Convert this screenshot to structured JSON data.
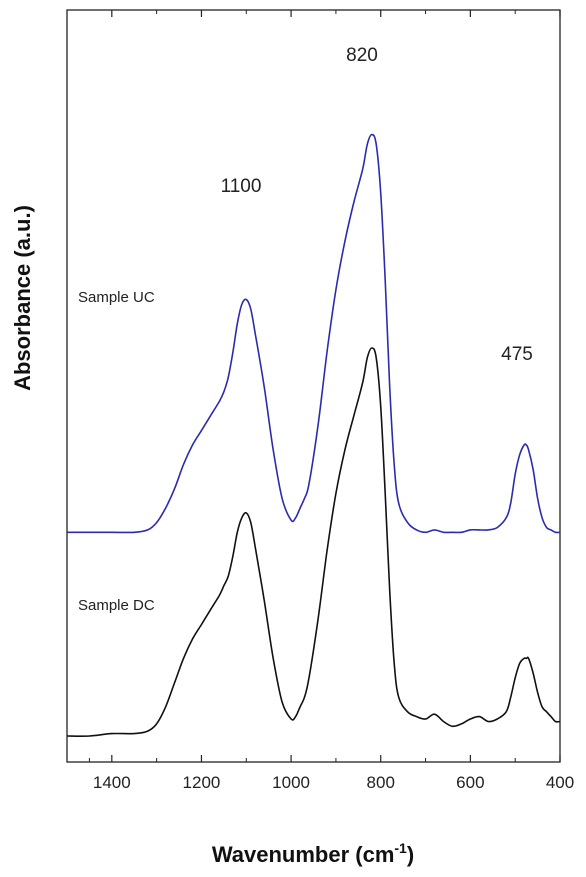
{
  "chart_data": {
    "type": "line",
    "xlabel": "Wavenumber (cm",
    "xlabel_sup": "-1",
    "xlabel_end": ")",
    "ylabel": "Absorbance (a.u.)",
    "xlim": [
      1500,
      400
    ],
    "x_reversed": true,
    "x_ticks": [
      1400,
      1200,
      1000,
      800,
      600,
      400
    ],
    "y_ticks_shown": false,
    "grid": false,
    "annotations": [
      {
        "text": "1100",
        "x": 1100
      },
      {
        "text": "820",
        "x": 820
      },
      {
        "text": "475",
        "x": 475
      }
    ],
    "series": [
      {
        "name": "Sample UC",
        "color": "#2b2bb0",
        "offset": 0.42,
        "x": [
          1500,
          1450,
          1400,
          1350,
          1320,
          1300,
          1280,
          1260,
          1240,
          1220,
          1200,
          1180,
          1160,
          1150,
          1140,
          1130,
          1120,
          1110,
          1100,
          1090,
          1080,
          1060,
          1040,
          1020,
          1000,
          990,
          980,
          970,
          960,
          940,
          920,
          900,
          880,
          860,
          840,
          830,
          820,
          810,
          800,
          790,
          780,
          770,
          760,
          740,
          720,
          700,
          680,
          660,
          640,
          620,
          600,
          580,
          560,
          540,
          520,
          510,
          500,
          490,
          480,
          475,
          470,
          460,
          450,
          440,
          430,
          420,
          410,
          400
        ],
        "y": [
          0.0,
          0.0,
          0.0,
          0.0,
          0.005,
          0.02,
          0.05,
          0.09,
          0.14,
          0.18,
          0.21,
          0.24,
          0.27,
          0.29,
          0.32,
          0.37,
          0.43,
          0.47,
          0.48,
          0.46,
          0.41,
          0.3,
          0.17,
          0.07,
          0.025,
          0.03,
          0.05,
          0.07,
          0.1,
          0.22,
          0.37,
          0.5,
          0.6,
          0.68,
          0.75,
          0.8,
          0.82,
          0.8,
          0.7,
          0.52,
          0.3,
          0.14,
          0.06,
          0.02,
          0.005,
          0.0,
          0.005,
          0.0,
          0.0,
          0.0,
          0.005,
          0.005,
          0.005,
          0.01,
          0.03,
          0.06,
          0.12,
          0.16,
          0.18,
          0.18,
          0.17,
          0.13,
          0.07,
          0.03,
          0.01,
          0.005,
          0.0,
          0.0
        ]
      },
      {
        "name": "Sample DC",
        "color": "#111111",
        "offset": 0.0,
        "x": [
          1500,
          1450,
          1400,
          1350,
          1320,
          1300,
          1280,
          1260,
          1240,
          1220,
          1200,
          1180,
          1160,
          1150,
          1140,
          1130,
          1120,
          1110,
          1100,
          1090,
          1080,
          1060,
          1040,
          1020,
          1000,
          990,
          980,
          970,
          960,
          940,
          920,
          900,
          880,
          860,
          840,
          830,
          820,
          810,
          800,
          790,
          780,
          770,
          760,
          740,
          720,
          700,
          680,
          660,
          640,
          620,
          600,
          580,
          560,
          540,
          520,
          510,
          500,
          490,
          480,
          475,
          470,
          460,
          450,
          440,
          430,
          420,
          410,
          400
        ],
        "y": [
          0.0,
          0.0,
          0.005,
          0.005,
          0.01,
          0.025,
          0.06,
          0.11,
          0.16,
          0.2,
          0.23,
          0.26,
          0.29,
          0.31,
          0.33,
          0.37,
          0.42,
          0.45,
          0.46,
          0.44,
          0.39,
          0.28,
          0.16,
          0.07,
          0.035,
          0.04,
          0.06,
          0.08,
          0.12,
          0.24,
          0.38,
          0.5,
          0.59,
          0.66,
          0.73,
          0.78,
          0.8,
          0.78,
          0.68,
          0.5,
          0.3,
          0.15,
          0.08,
          0.05,
          0.04,
          0.035,
          0.045,
          0.03,
          0.02,
          0.025,
          0.035,
          0.04,
          0.03,
          0.035,
          0.05,
          0.08,
          0.12,
          0.15,
          0.16,
          0.16,
          0.16,
          0.13,
          0.09,
          0.06,
          0.05,
          0.04,
          0.03,
          0.03
        ]
      }
    ]
  }
}
